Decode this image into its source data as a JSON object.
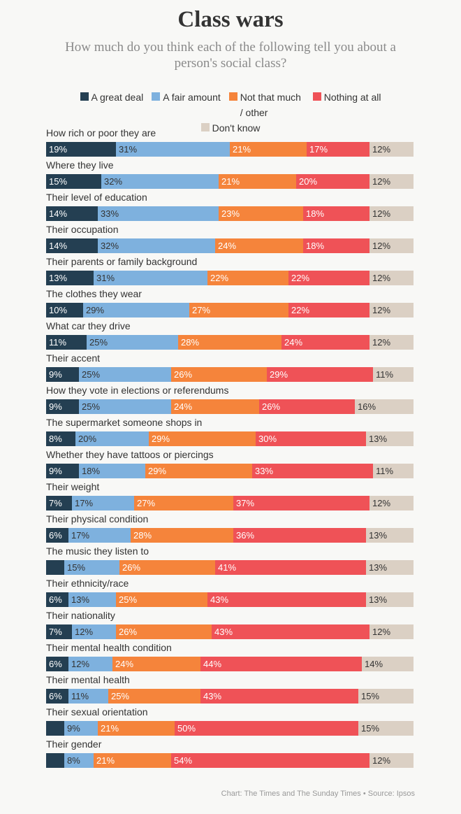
{
  "chart_data": {
    "type": "bar",
    "orientation": "horizontal",
    "stacked": true,
    "title": "Class wars",
    "subtitle": "How much do you think each of the following tell you about a person's social class?",
    "source": "Chart: The Times and The Sunday Times • Source: Ipsos",
    "legend_placement": "top",
    "series": [
      {
        "name": "A great deal",
        "color": "#243f52",
        "text_color": "#ffffff"
      },
      {
        "name": "A fair amount",
        "color": "#7eb1de",
        "text_color": "#333333"
      },
      {
        "name": "Not that much / other",
        "color": "#f5843b",
        "text_color": "#ffffff"
      },
      {
        "name": "Nothing at all",
        "color": "#ef5257",
        "text_color": "#ffffff"
      },
      {
        "name": "Don't know",
        "color": "#dbd0c4",
        "text_color": "#333333"
      }
    ],
    "categories": [
      "How rich or poor they are",
      "Where they live",
      "Their level of education",
      "Their occupation",
      "Their parents or family background",
      "The clothes they wear",
      "What car they drive",
      "Their accent",
      "How they vote in elections or referendums",
      "The supermarket someone shops in",
      "Whether they have tattoos or piercings",
      "Their weight",
      "Their physical condition",
      "The music they listen to",
      "Their ethnicity/race",
      "Their nationality",
      "Their mental health condition",
      "Their mental health",
      "Their sexual orientation",
      "Their gender"
    ],
    "values": [
      [
        19,
        31,
        21,
        17,
        12
      ],
      [
        15,
        32,
        21,
        20,
        12
      ],
      [
        14,
        33,
        23,
        18,
        12
      ],
      [
        14,
        32,
        24,
        18,
        12
      ],
      [
        13,
        31,
        22,
        22,
        12
      ],
      [
        10,
        29,
        27,
        22,
        12
      ],
      [
        11,
        25,
        28,
        24,
        12
      ],
      [
        9,
        25,
        26,
        29,
        11
      ],
      [
        9,
        25,
        24,
        26,
        16
      ],
      [
        8,
        20,
        29,
        30,
        13
      ],
      [
        9,
        18,
        29,
        33,
        11
      ],
      [
        7,
        17,
        27,
        37,
        12
      ],
      [
        6,
        17,
        28,
        36,
        13
      ],
      [
        5,
        15,
        26,
        41,
        13
      ],
      [
        6,
        13,
        25,
        43,
        13
      ],
      [
        7,
        12,
        26,
        43,
        12
      ],
      [
        6,
        12,
        24,
        44,
        14
      ],
      [
        6,
        11,
        25,
        43,
        15
      ],
      [
        5,
        9,
        21,
        50,
        15
      ],
      [
        5,
        8,
        21,
        54,
        12
      ]
    ],
    "labels": [
      [
        "19%",
        "31%",
        "21%",
        "17%",
        "12%"
      ],
      [
        "15%",
        "32%",
        "21%",
        "20%",
        "12%"
      ],
      [
        "14%",
        "33%",
        "23%",
        "18%",
        "12%"
      ],
      [
        "14%",
        "32%",
        "24%",
        "18%",
        "12%"
      ],
      [
        "13%",
        "31%",
        "22%",
        "22%",
        "12%"
      ],
      [
        "10%",
        "29%",
        "27%",
        "22%",
        "12%"
      ],
      [
        "11%",
        "25%",
        "28%",
        "24%",
        "12%"
      ],
      [
        "9%",
        "25%",
        "26%",
        "29%",
        "11%"
      ],
      [
        "9%",
        "25%",
        "24%",
        "26%",
        "16%"
      ],
      [
        "8%",
        "20%",
        "29%",
        "30%",
        "13%"
      ],
      [
        "9%",
        "18%",
        "29%",
        "33%",
        "11%"
      ],
      [
        "7%",
        "17%",
        "27%",
        "37%",
        "12%"
      ],
      [
        "6%",
        "17%",
        "28%",
        "36%",
        "13%"
      ],
      [
        "",
        "15%",
        "26%",
        "41%",
        "13%"
      ],
      [
        "6%",
        "13%",
        "25%",
        "43%",
        "13%"
      ],
      [
        "7%",
        "12%",
        "26%",
        "43%",
        "12%"
      ],
      [
        "6%",
        "12%",
        "24%",
        "44%",
        "14%"
      ],
      [
        "6%",
        "11%",
        "25%",
        "43%",
        "15%"
      ],
      [
        "",
        "9%",
        "21%",
        "50%",
        "15%"
      ],
      [
        "",
        "8%",
        "21%",
        "54%",
        "12%"
      ]
    ]
  }
}
